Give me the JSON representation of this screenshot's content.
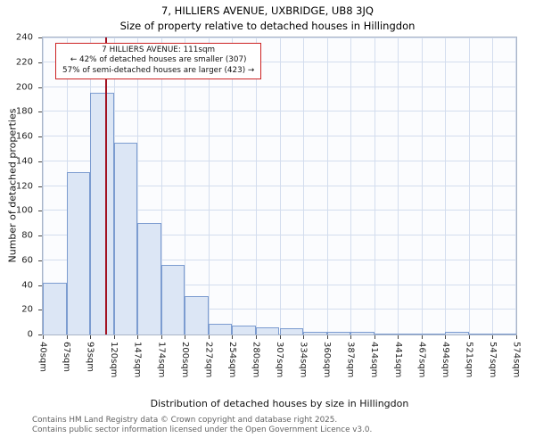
{
  "title": "7, HILLIERS AVENUE, UXBRIDGE, UB8 3JQ",
  "subtitle": "Size of property relative to detached houses in Hillingdon",
  "chart_data": {
    "type": "bar",
    "title": "7, HILLIERS AVENUE, UXBRIDGE, UB8 3JQ",
    "subtitle": "Size of property relative to detached houses in Hillingdon",
    "categories": [
      "40sqm",
      "67sqm",
      "93sqm",
      "120sqm",
      "147sqm",
      "174sqm",
      "200sqm",
      "227sqm",
      "254sqm",
      "280sqm",
      "307sqm",
      "334sqm",
      "360sqm",
      "387sqm",
      "414sqm",
      "441sqm",
      "467sqm",
      "494sqm",
      "521sqm",
      "547sqm",
      "574sqm"
    ],
    "values": [
      42,
      131,
      195,
      155,
      90,
      56,
      31,
      9,
      7,
      6,
      5,
      2,
      2,
      2,
      1,
      1,
      1,
      2,
      1,
      1
    ],
    "xlabel": "Distribution of detached houses by size in Hillingdon",
    "ylabel": "Number of detached properties",
    "ylim": [
      0,
      240
    ],
    "yticks": [
      0,
      20,
      40,
      60,
      80,
      100,
      120,
      140,
      160,
      180,
      200,
      220,
      240
    ],
    "grid": true,
    "marker": {
      "label": "7 HILLIERS AVENUE",
      "sqm": 111,
      "x_min_sqm": 40,
      "x_max_sqm": 574
    },
    "annotation": {
      "lines": [
        "7 HILLIERS AVENUE: 111sqm",
        "← 42% of detached houses are smaller (307)",
        "57% of semi-detached houses are larger (423) →"
      ]
    },
    "colors": {
      "bar_fill": "#dce6f5",
      "bar_border": "#7c9cd0",
      "grid": "#d3ddee",
      "marker_line": "#a21222",
      "annotation_border": "#cc2222"
    }
  },
  "footer": {
    "line1": "Contains HM Land Registry data © Crown copyright and database right 2025.",
    "line2": "Contains public sector information licensed under the Open Government Licence v3.0."
  }
}
